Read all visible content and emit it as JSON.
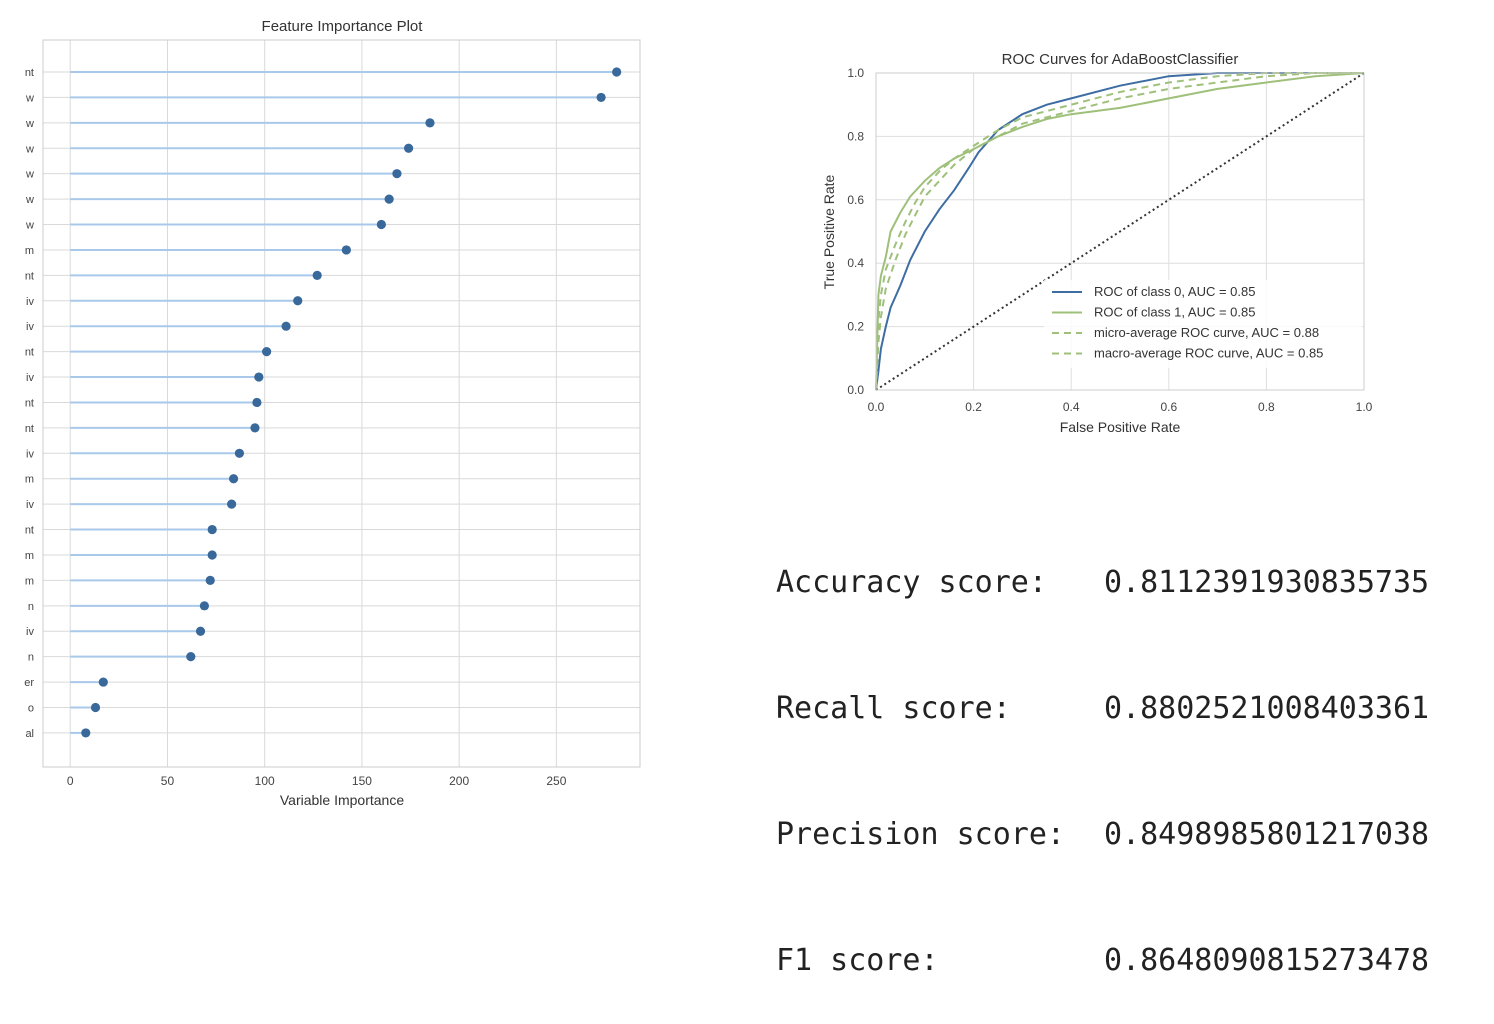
{
  "chart_data": [
    {
      "type": "lollipop",
      "title": "Feature Importance Plot",
      "xlabel": "Variable Importance",
      "ylabel": "",
      "xlim": [
        -14,
        293
      ],
      "xticks": [
        0,
        50,
        100,
        150,
        200,
        250
      ],
      "grid": true,
      "colors": {
        "stem": "#a9c9ea",
        "marker": "#39689a"
      },
      "categories": [
        "nt",
        "w",
        "w",
        "w",
        "w",
        "w",
        "w",
        "m",
        "nt",
        "iv",
        "iv",
        "nt",
        "iv",
        "nt",
        "nt",
        "iv",
        "m",
        "iv",
        "nt",
        "m",
        "m",
        "n",
        "iv",
        "n",
        "er",
        "o",
        "al"
      ],
      "values": [
        281,
        273,
        185,
        174,
        168,
        164,
        160,
        142,
        127,
        117,
        111,
        101,
        97,
        96,
        95,
        87,
        84,
        83,
        73,
        73,
        72,
        69,
        67,
        62,
        17,
        13,
        8
      ]
    },
    {
      "type": "line",
      "title": "ROC Curves for AdaBoostClassifier",
      "xlabel": "False Positive Rate",
      "ylabel": "True Positive Rate",
      "xlim": [
        0,
        1
      ],
      "ylim": [
        0,
        1
      ],
      "xticks": [
        "0.0",
        "0.2",
        "0.4",
        "0.6",
        "0.8",
        "1.0"
      ],
      "yticks": [
        "0.0",
        "0.2",
        "0.4",
        "0.6",
        "0.8",
        "1.0"
      ],
      "grid": true,
      "legend": "lower-right",
      "series": [
        {
          "name": "ROC of class 0, AUC = 0.85",
          "color": "#3e6da3",
          "dash": "solid",
          "x": [
            0,
            0.005,
            0.01,
            0.02,
            0.03,
            0.05,
            0.07,
            0.1,
            0.13,
            0.16,
            0.19,
            0.21,
            0.25,
            0.3,
            0.35,
            0.4,
            0.5,
            0.6,
            0.7,
            0.8,
            0.9,
            1.0
          ],
          "y": [
            0,
            0.06,
            0.13,
            0.2,
            0.26,
            0.33,
            0.41,
            0.5,
            0.57,
            0.63,
            0.7,
            0.75,
            0.82,
            0.87,
            0.9,
            0.92,
            0.96,
            0.99,
            1.0,
            1.0,
            1.0,
            1.0
          ]
        },
        {
          "name": "ROC of class 1, AUC = 0.85",
          "color": "#9fc07a",
          "dash": "solid",
          "x": [
            0,
            0.005,
            0.01,
            0.02,
            0.03,
            0.05,
            0.07,
            0.1,
            0.13,
            0.16,
            0.2,
            0.25,
            0.3,
            0.35,
            0.4,
            0.5,
            0.6,
            0.7,
            0.8,
            0.9,
            1.0
          ],
          "y": [
            0,
            0.3,
            0.36,
            0.42,
            0.5,
            0.56,
            0.61,
            0.66,
            0.7,
            0.73,
            0.76,
            0.8,
            0.83,
            0.855,
            0.87,
            0.89,
            0.92,
            0.95,
            0.97,
            0.99,
            1.0
          ]
        },
        {
          "name": "micro-average ROC curve, AUC = 0.88",
          "color": "#9fc07a",
          "dash": "dashed",
          "x": [
            0,
            0.005,
            0.01,
            0.02,
            0.04,
            0.06,
            0.08,
            0.1,
            0.13,
            0.16,
            0.2,
            0.25,
            0.3,
            0.4,
            0.5,
            0.6,
            0.7,
            0.8,
            0.9,
            1.0
          ],
          "y": [
            0,
            0.22,
            0.3,
            0.38,
            0.46,
            0.53,
            0.59,
            0.64,
            0.69,
            0.73,
            0.77,
            0.82,
            0.86,
            0.9,
            0.94,
            0.97,
            0.99,
            1.0,
            1.0,
            1.0
          ]
        },
        {
          "name": "macro-average ROC curve, AUC = 0.85",
          "color": "#9fc07a",
          "dash": "dashed",
          "x": [
            0,
            0.005,
            0.01,
            0.02,
            0.04,
            0.06,
            0.08,
            0.1,
            0.13,
            0.16,
            0.2,
            0.25,
            0.3,
            0.4,
            0.5,
            0.6,
            0.7,
            0.8,
            0.9,
            1.0
          ],
          "y": [
            0,
            0.15,
            0.23,
            0.32,
            0.41,
            0.49,
            0.55,
            0.61,
            0.66,
            0.71,
            0.76,
            0.8,
            0.84,
            0.88,
            0.92,
            0.95,
            0.97,
            0.99,
            1.0,
            1.0
          ]
        },
        {
          "name": "",
          "color": "#333333",
          "dash": "dotted",
          "x": [
            0,
            1
          ],
          "y": [
            0,
            1
          ]
        }
      ]
    }
  ],
  "metrics": [
    {
      "label": "Accuracy score:",
      "value": "0.8112391930835735"
    },
    {
      "label": "Recall score:",
      "value": "0.8802521008403361"
    },
    {
      "label": "Precision score:",
      "value": "0.8498985801217038"
    },
    {
      "label": "F1 score:",
      "value": "0.8648090815273478"
    }
  ]
}
